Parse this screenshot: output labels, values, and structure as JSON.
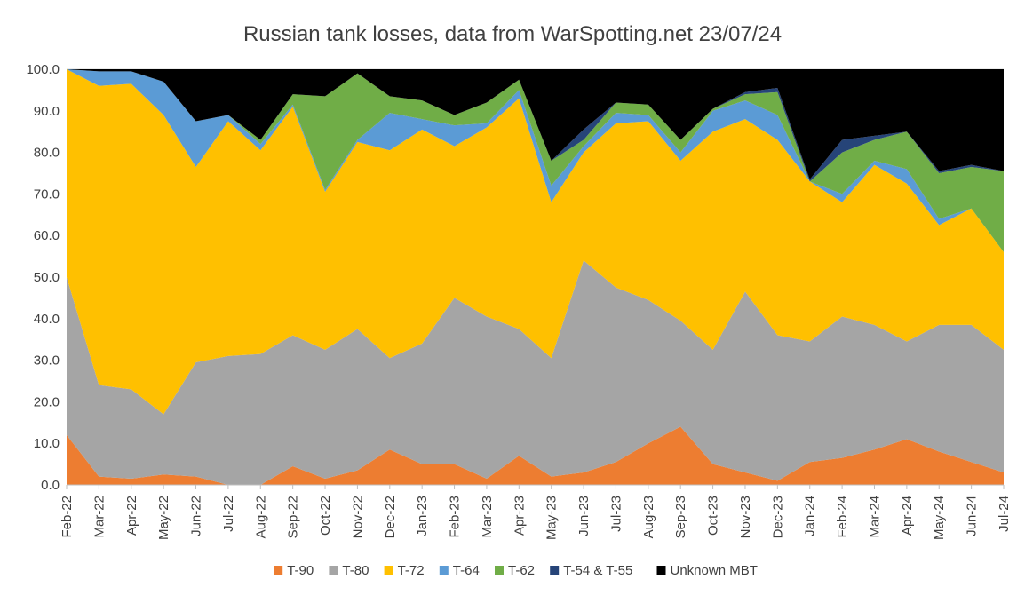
{
  "chart_data": {
    "type": "area",
    "stacked": true,
    "title": "Russian tank losses, data from WarSpotting.net 23/07/24",
    "xlabel": "",
    "ylabel": "",
    "ylim": [
      0,
      100
    ],
    "y_ticks": [
      "0.0",
      "10.0",
      "20.0",
      "30.0",
      "40.0",
      "50.0",
      "60.0",
      "70.0",
      "80.0",
      "90.0",
      "100.0"
    ],
    "grid": "horizontal",
    "legend_position": "bottom",
    "categories": [
      "Feb-22",
      "Mar-22",
      "Apr-22",
      "May-22",
      "Jun-22",
      "Jul-22",
      "Aug-22",
      "Sep-22",
      "Oct-22",
      "Nov-22",
      "Dec-22",
      "Jan-23",
      "Feb-23",
      "Mar-23",
      "Apr-23",
      "May-23",
      "Jun-23",
      "Jul-23",
      "Aug-23",
      "Sep-23",
      "Oct-23",
      "Nov-23",
      "Dec-23",
      "Jan-24",
      "Feb-24",
      "Mar-24",
      "Apr-24",
      "May-24",
      "Jun-24",
      "Jul-24"
    ],
    "series": [
      {
        "name": "T-90",
        "color": "#ED7D31",
        "values": [
          12,
          2,
          1.5,
          2.5,
          2,
          0,
          0,
          4.5,
          1.5,
          3.5,
          8.5,
          5,
          5,
          1.5,
          7,
          2,
          3,
          5.5,
          10,
          14,
          5,
          3,
          1,
          5.5,
          6.5,
          8.5,
          11,
          8,
          5.5,
          3
        ]
      },
      {
        "name": "T-80",
        "color": "#A5A5A5",
        "values": [
          38,
          22,
          21.5,
          14.5,
          27.5,
          31,
          31.5,
          31.5,
          31,
          34,
          22,
          29,
          40,
          39,
          30.5,
          28.5,
          51,
          42,
          34.5,
          25.5,
          27.5,
          43.5,
          35,
          29,
          34,
          30,
          23.5,
          30.5,
          33,
          29.5
        ]
      },
      {
        "name": "T-72",
        "color": "#FFC000",
        "values": [
          50,
          72,
          73.5,
          72,
          47,
          56.5,
          49,
          55,
          38,
          45,
          50,
          51.5,
          36.5,
          45.5,
          55.5,
          37.5,
          26,
          39.5,
          43,
          38.5,
          52.5,
          41.5,
          47,
          38.5,
          27.5,
          38.5,
          38,
          24,
          28,
          23.5
        ]
      },
      {
        "name": "T-64",
        "color": "#5B9BD5",
        "values": [
          0,
          3.5,
          3,
          8,
          11,
          1.5,
          1.5,
          0.5,
          0.5,
          0.5,
          9,
          2.5,
          5,
          1,
          2,
          4,
          1.5,
          2.5,
          1.5,
          2,
          5,
          4.5,
          6,
          0,
          2,
          1,
          3.5,
          1.5,
          0,
          0
        ]
      },
      {
        "name": "T-62",
        "color": "#70AD47",
        "values": [
          0,
          0,
          0,
          0,
          0,
          0,
          1,
          2.5,
          22.5,
          16,
          4,
          4.5,
          2.5,
          5,
          2.5,
          6,
          1.5,
          2.5,
          2.5,
          3,
          0.5,
          1.5,
          5.5,
          0,
          10,
          5,
          9,
          11,
          10,
          19.5
        ]
      },
      {
        "name": "T-54 & T-55",
        "color": "#264478",
        "values": [
          0,
          0,
          0,
          0,
          0,
          0,
          0,
          0,
          0,
          0,
          0,
          0,
          0,
          0,
          0,
          0,
          2.5,
          0,
          0,
          0,
          0,
          0.5,
          1,
          0.5,
          3,
          1,
          0,
          0.5,
          0.5,
          0
        ]
      },
      {
        "name": "Unknown MBT",
        "color": "#000000",
        "values": [
          0,
          0.5,
          0.5,
          3,
          12.5,
          11,
          17,
          6,
          6.5,
          1,
          6.5,
          7.5,
          11,
          8,
          2.5,
          22,
          14.5,
          8,
          8.5,
          17,
          9.5,
          5.5,
          4.5,
          26.5,
          17,
          16,
          15,
          24.5,
          23,
          24.5
        ]
      }
    ]
  }
}
